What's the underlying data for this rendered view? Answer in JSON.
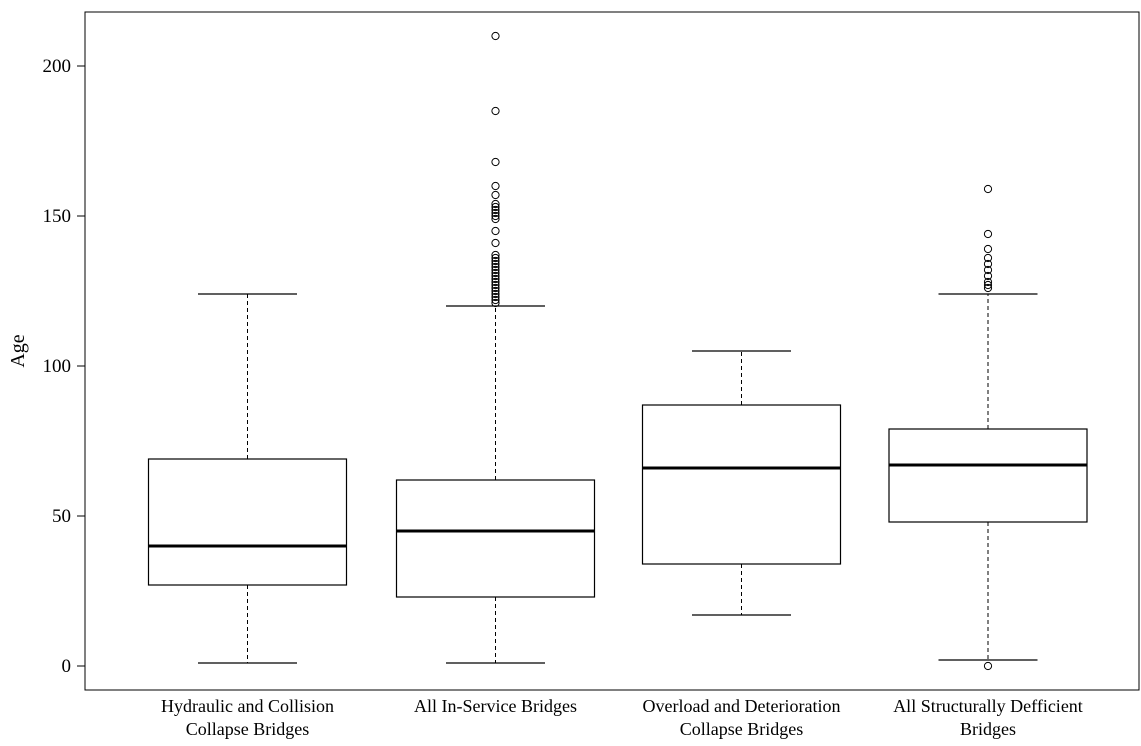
{
  "chart_data": {
    "type": "box",
    "title": "",
    "xlabel": "",
    "ylabel": "Age",
    "ylim": [
      -8,
      218
    ],
    "yticks": [
      0,
      50,
      100,
      150,
      200
    ],
    "grid": false,
    "categories": [
      [
        "Hydraulic and Collision",
        "Collapse Bridges"
      ],
      [
        "All In-Service Bridges"
      ],
      [
        "Overload  and Deterioration",
        "Collapse Bridges"
      ],
      [
        "All Structurally Defficient",
        "Bridges"
      ]
    ],
    "boxes": [
      {
        "whisker_low": 1,
        "q1": 27,
        "median": 40,
        "q3": 69,
        "whisker_high": 124,
        "outliers": []
      },
      {
        "whisker_low": 1,
        "q1": 23,
        "median": 45,
        "q3": 62,
        "whisker_high": 120,
        "outliers": [
          121,
          122,
          123,
          124,
          125,
          126,
          127,
          128,
          129,
          130,
          131,
          132,
          133,
          134,
          135,
          136,
          137,
          141,
          145,
          149,
          150,
          151,
          152,
          153,
          154,
          157,
          160,
          168,
          185,
          210
        ]
      },
      {
        "whisker_low": 17,
        "q1": 34,
        "median": 66,
        "q3": 87,
        "whisker_high": 105,
        "outliers": []
      },
      {
        "whisker_low": 2,
        "q1": 48,
        "median": 67,
        "q3": 79,
        "whisker_high": 124,
        "outliers": [
          0,
          126,
          127,
          128,
          130,
          132,
          134,
          136,
          139,
          144,
          159
        ]
      }
    ]
  }
}
